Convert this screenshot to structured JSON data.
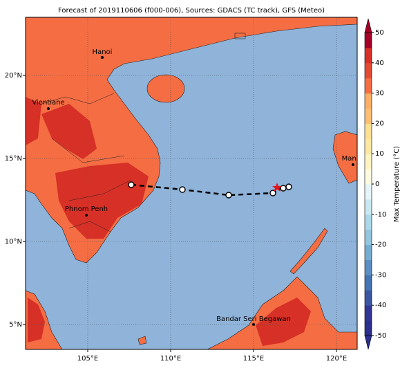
{
  "title": "Forecast of 2019110606 (f000-006), Sources: GDACS (TC track), GFS (Meteo)",
  "map": {
    "xlim": [
      101.25,
      121.25
    ],
    "ylim": [
      3.5,
      23.5
    ],
    "xticks": [
      {
        "value": 105,
        "label": "105°E"
      },
      {
        "value": 110,
        "label": "110°E"
      },
      {
        "value": 115,
        "label": "115°E"
      },
      {
        "value": 120,
        "label": "120°E"
      }
    ],
    "yticks": [
      {
        "value": 5,
        "label": "5°N"
      },
      {
        "value": 10,
        "label": "10°N"
      },
      {
        "value": 15,
        "label": "15°N"
      },
      {
        "value": 20,
        "label": "20°N"
      }
    ]
  },
  "cities": [
    "Hanoi",
    "Vientiane",
    "Phnom Penh",
    "Manila",
    "Bandar Seri Begawan"
  ],
  "colorbar": {
    "label": "Max Temperature (°C)",
    "lim": [
      -50,
      50
    ],
    "ticks": [
      -50,
      -40,
      -30,
      -20,
      -10,
      0,
      10,
      20,
      30,
      40,
      50
    ],
    "colors": [
      "#2b2f8e",
      "#313695",
      "#3a56a3",
      "#4575b4",
      "#5b8fc4",
      "#74add1",
      "#92c5de",
      "#abd9e9",
      "#c9e8f2",
      "#e6f5f9",
      "#fffbe0",
      "#fff3c0",
      "#fee8a0",
      "#fee090",
      "#fdbf71",
      "#fdae61",
      "#f46d43",
      "#e34a33",
      "#d73027",
      "#a50026"
    ]
  }
}
